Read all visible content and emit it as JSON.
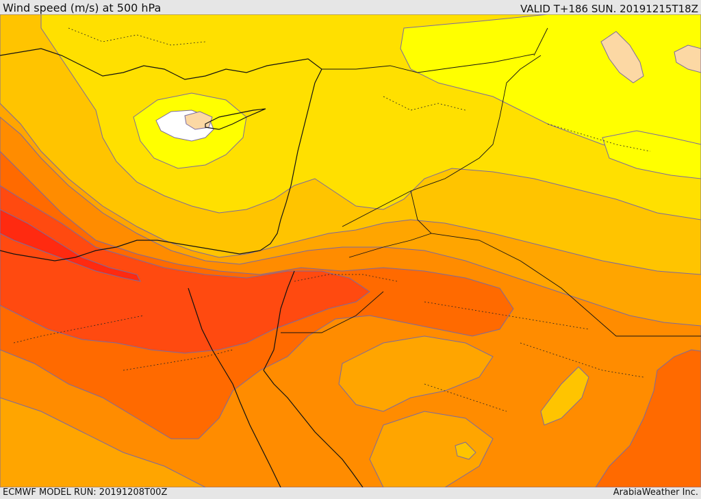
{
  "header": {
    "title": "Wind speed (m/s) at 500 hPa",
    "valid": "VALID T+186 SUN. 20191215T18Z"
  },
  "footer": {
    "model_run": "ECMWF MODEL RUN: 20191208T00Z",
    "credit": "ArabiaWeather Inc."
  },
  "map": {
    "field": "Wind speed at 500 hPa",
    "colors": {
      "white": "#ffffff",
      "peach": "#fcd8a4",
      "yellow": "#ffff00",
      "yellow_gold": "#ffe000",
      "gold": "#ffc400",
      "light_orange": "#ffa500",
      "orange": "#ff8c00",
      "dark_orange": "#ff6a00",
      "orange_red": "#ff4a10",
      "red": "#ff2a10",
      "contour": "#7a6aa0",
      "coastline": "#111111"
    }
  }
}
